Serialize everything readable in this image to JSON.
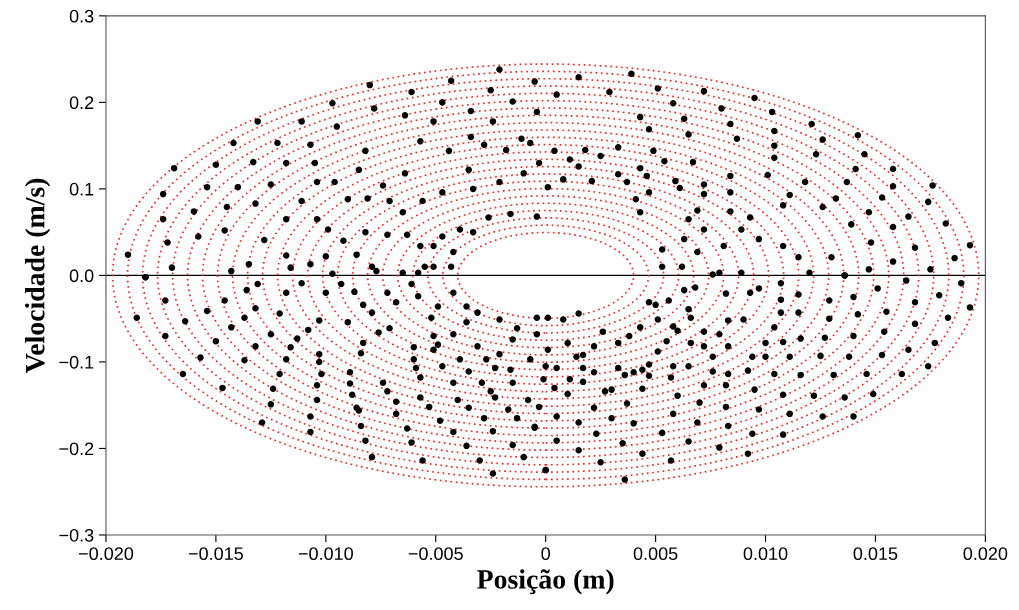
{
  "chart_data": {
    "type": "scatter",
    "xlabel": "Posição (m)",
    "ylabel": "Velocidade (m/s)",
    "xlim": [
      -0.02,
      0.02
    ],
    "ylim": [
      -0.3,
      0.3
    ],
    "xticks": [
      {
        "value": -0.02,
        "label": "−0.020"
      },
      {
        "value": -0.015,
        "label": "−0.015"
      },
      {
        "value": -0.01,
        "label": "−0.010"
      },
      {
        "value": -0.005,
        "label": "−0.005"
      },
      {
        "value": 0,
        "label": "0"
      },
      {
        "value": 0.005,
        "label": "0.005"
      },
      {
        "value": 0.01,
        "label": "0.010"
      },
      {
        "value": 0.015,
        "label": "0.015"
      },
      {
        "value": 0.02,
        "label": "0.020"
      }
    ],
    "yticks": [
      {
        "value": -0.3,
        "label": "−0.3"
      },
      {
        "value": -0.2,
        "label": "−0.2"
      },
      {
        "value": -0.1,
        "label": "−0.1"
      },
      {
        "value": 0,
        "label": "0.0"
      },
      {
        "value": 0.1,
        "label": "0.1"
      },
      {
        "value": 0.2,
        "label": "0.2"
      },
      {
        "value": 0.3,
        "label": "0.3"
      }
    ],
    "grid": false,
    "legend": false,
    "ref_lines": [
      {
        "axis": "y",
        "value": 0,
        "color": "#000000",
        "line_style": "solid"
      }
    ],
    "series": [
      {
        "color": "#000000",
        "marker": "circle",
        "x": [
          -0.0131,
          -0.0169,
          -0.019,
          -0.0182,
          -0.0174,
          -0.0174,
          -0.0142,
          -0.0111,
          -0.0097,
          -0.008,
          -0.0043,
          -0.0021,
          -0.0061,
          -0.0047,
          -0.0078,
          -0.0122,
          -0.015,
          -0.0154,
          -0.016,
          -0.0172,
          -0.017,
          -0.0158,
          -0.0145,
          -0.0133,
          -0.0118,
          -0.0107,
          -0.0095,
          -0.0064,
          -0.0034,
          -0.0025,
          -0.0015,
          -0.0005,
          -0.0004,
          -0.0024,
          -0.0051,
          -0.0034,
          -0.0057,
          -0.0082,
          -0.0105,
          -0.0125,
          -0.014,
          -0.0146,
          -0.0143,
          -0.0132,
          -0.0128,
          -0.0135,
          -0.0118,
          -0.0116,
          -0.0107,
          -0.0118,
          -0.0111,
          -0.0104,
          -0.0096,
          -0.009,
          -0.0085,
          -0.0074,
          -0.0064,
          -0.0044,
          -0.0035,
          -0.0028,
          -0.0018,
          -0.0011,
          -0.0007,
          -0.0003,
          -0.001,
          -0.0021,
          -0.0033,
          -0.0047,
          -0.0056,
          -0.0071,
          -0.0081,
          -0.0104,
          -0.0099,
          -0.0092,
          -0.01,
          -0.0097,
          -0.0082,
          -0.0072,
          -0.0065,
          -0.0063,
          -0.0057,
          -0.0051,
          -0.0047,
          -0.0039,
          -0.0033,
          -0.0026,
          -0.0016,
          -0.0004,
          -0.0051,
          -0.0058,
          -0.0065,
          -0.0077,
          -0.0086,
          -0.0079,
          -0.0055,
          -0.0043,
          -0.0042,
          0.0039,
          0.0015,
          0.0072,
          0.0095,
          0.0121,
          0.0142,
          0.0176,
          0.0193,
          0.0186,
          0.0158,
          0.0182,
          0.0174,
          0.0165,
          0.0153,
          0.0145,
          0.0126,
          0.0103,
          0.008,
          0.0051,
          0.0029,
          0.0005,
          0.0058,
          0.0084,
          0.0104,
          0.0123,
          0.0141,
          0.0137,
          0.0132,
          0.0147,
          0.0158,
          0.0168,
          0.0175,
          0.0158,
          0.0139,
          0.0148,
          0.0158,
          0.0147,
          0.0136,
          0.013,
          0.0126,
          0.0118,
          0.0111,
          0.0108,
          0.0101,
          0.0104,
          0.0104,
          0.0087,
          0.0084,
          0.0084,
          0.0084,
          0.0093,
          0.0097,
          0.0108,
          0.0115,
          0.012,
          0.0067,
          0.0065,
          0.0063,
          0.0047,
          0.0043,
          0.0033,
          0.0025,
          0.0018,
          0.0004,
          0.0011,
          0.0072,
          0.0072,
          0.0069,
          0.0065,
          0.0061,
          0.0059,
          0.0054,
          0.0049,
          0.0043,
          0.0046,
          0.0047,
          0.0043,
          0.0041,
          0.0037,
          0.0033,
          0.0021,
          0.0015,
          0.0008,
          0.0001,
          0.0089,
          0.0081,
          0.0072,
          0.0063,
          0.0053,
          0.0053,
          0.0062,
          0.0069,
          0.0079,
          0.0089,
          -0.0186,
          -0.0173,
          -0.0165,
          -0.0182,
          -0.0173,
          -0.0164,
          -0.0157,
          -0.0147,
          -0.0129,
          -0.0107,
          -0.0079,
          -0.0056,
          -0.0024,
          0.0,
          -0.003,
          -0.0036,
          -0.0042,
          -0.0015,
          -0.001,
          -0.0005,
          -0.0061,
          -0.0063,
          -0.0068,
          -0.0082,
          -0.0084,
          -0.0085,
          -0.0107,
          -0.0104,
          -0.0104,
          -0.0102,
          -0.0103,
          -0.0103,
          -0.0125,
          -0.0124,
          -0.0121,
          -0.0118,
          -0.0116,
          -0.0113,
          -0.0108,
          -0.0103,
          -0.01,
          -0.0137,
          -0.0132,
          -0.0125,
          -0.0121,
          -0.0118,
          -0.0143,
          -0.0137,
          -0.0132,
          -0.0131,
          -0.015,
          -0.0154,
          -0.0146,
          -0.0136,
          -0.0089,
          -0.0089,
          -0.0088,
          -0.0086,
          -0.0084,
          -0.0083,
          -0.0076,
          -0.0071,
          -0.0074,
          -0.0072,
          -0.0068,
          -0.006,
          -0.006,
          -0.0059,
          -0.0057,
          -0.0057,
          -0.0053,
          -0.0048,
          -0.0051,
          -0.0047,
          -0.0042,
          -0.004,
          -0.0035,
          -0.0028,
          -0.0024,
          -0.0017,
          -0.0013,
          -0.0005,
          -0.0003,
          -0.0008,
          -0.0015,
          -0.0025,
          -0.0023,
          -0.0029,
          -0.0035,
          -0.0039,
          -0.0023,
          -0.0016,
          -0.0007,
          -0.0001,
          -0.0049,
          -0.0042,
          -0.0051,
          -0.0052,
          -0.0036,
          -0.0031,
          -0.0027,
          -0.0021,
          -0.0015,
          -0.0004,
          0.0001,
          -0.0058,
          -0.0049,
          -0.0042,
          -0.0061,
          -0.0068,
          -0.0072,
          -0.0079,
          -0.0083,
          -0.0087,
          -0.009,
          -0.0093,
          -0.0111,
          -0.0031,
          -0.0021,
          -0.0013,
          -0.0004,
          -0.0036,
          0.0193,
          0.0189,
          0.0179,
          0.0183,
          0.0177,
          0.0174,
          0.0168,
          0.0168,
          0.0165,
          0.0162,
          0.0155,
          0.0154,
          0.0153,
          0.0149,
          0.0146,
          0.014,
          0.0136,
          0.0138,
          0.014,
          0.0142,
          0.014,
          0.0151,
          0.0164,
          0.0136,
          0.0129,
          0.0129,
          0.0127,
          0.0125,
          0.0131,
          0.0122,
          0.0126,
          0.0108,
          0.0111,
          0.0108,
          0.0104,
          0.0116,
          0.0116,
          0.0111,
          0.0108,
          0.0104,
          0.0115,
          0.0115,
          0.0107,
          0.0107,
          0.0107,
          0.0097,
          0.0093,
          0.009,
          0.01,
          0.01,
          0.0094,
          0.0092,
          0.0095,
          0.0097,
          0.0094,
          0.0092,
          0.0079,
          0.0083,
          0.0082,
          0.0082,
          0.0083,
          0.0083,
          0.0083,
          0.0079,
          0.0076,
          0.0072,
          0.007,
          0.0069,
          0.0065,
          0.0057,
          0.0044,
          0.0036,
          0.0025,
          0.0035,
          0.0053,
          0.0058,
          0.006,
          0.004,
          0.0037,
          0.003,
          0.0023,
          0.0015,
          0.0,
          0.0005,
          0.0005,
          0.0015,
          0.0022,
          0.003,
          0.0036,
          0.0044,
          0.0047,
          0.0057,
          0.0058,
          0.0065,
          0.0066,
          0.0072,
          0.0076,
          0.0072,
          0.0066,
          0.006,
          0.0051,
          0.0047,
          0.004,
          0.0033,
          0.0027,
          0.0022,
          0.0017,
          0.0011,
          0.0004,
          0.001,
          0.0014,
          0.001,
          0.0005,
          0.0,
          0.0017,
          0.0044,
          0.0055,
          0.0058,
          0.0051,
          0.0047,
          0.0056,
          0.0065,
          0.0068,
          0.0082,
          0.0076,
          0.0063,
          0.005,
          0.0043,
          0.0038,
          0.0033,
          0.0026,
          0.0022,
          0.0017,
          0.0015,
          0.0008,
          0.0001
        ],
        "values": [
          0.178,
          0.124,
          0.024,
          -0.002,
          0.094,
          0.065,
          0.153,
          0.178,
          0.199,
          0.22,
          0.225,
          0.238,
          0.212,
          0.2,
          0.193,
          0.153,
          0.128,
          0.102,
          0.074,
          0.038,
          0.009,
          0.045,
          0.079,
          0.131,
          0.13,
          0.151,
          0.172,
          0.185,
          0.19,
          0.214,
          0.201,
          0.224,
          0.189,
          0.178,
          0.178,
          0.16,
          0.155,
          0.144,
          0.13,
          0.105,
          0.102,
          0.052,
          0.005,
          0.083,
          0.041,
          0.013,
          0.023,
          0.009,
          0.013,
          0.065,
          0.086,
          0.108,
          0.108,
          0.088,
          0.122,
          0.104,
          0.118,
          0.144,
          0.122,
          0.151,
          0.145,
          0.158,
          0.153,
          0.13,
          0.118,
          0.108,
          0.1,
          0.096,
          0.086,
          0.086,
          0.089,
          0.065,
          0.053,
          0.04,
          0.022,
          0.002,
          0.05,
          0.047,
          0.073,
          0.047,
          0.034,
          0.034,
          0.045,
          0.053,
          0.05,
          0.067,
          0.071,
          0.068,
          0.01,
          0.003,
          0.003,
          0.005,
          0.024,
          0.01,
          0.01,
          0.01,
          0.027,
          0.233,
          0.229,
          0.213,
          0.205,
          0.175,
          0.162,
          0.104,
          0.035,
          0.02,
          0.123,
          0.06,
          0.085,
          0.068,
          0.09,
          0.14,
          0.157,
          0.189,
          0.193,
          0.216,
          0.212,
          0.209,
          0.199,
          0.175,
          0.167,
          0.14,
          0.123,
          0.108,
          0.089,
          0.073,
          0.056,
          0.032,
          0.007,
          0.103,
          0.059,
          0.038,
          0.016,
          0.007,
          0.0,
          0.021,
          0.079,
          0.108,
          0.093,
          0.081,
          0.116,
          0.15,
          0.136,
          0.158,
          0.115,
          0.096,
          0.074,
          0.067,
          0.042,
          0.034,
          0.021,
          0.003,
          0.131,
          0.163,
          0.181,
          0.169,
          0.183,
          0.148,
          0.138,
          0.145,
          0.144,
          0.134,
          0.105,
          0.094,
          0.075,
          0.065,
          0.101,
          0.109,
          0.132,
          0.144,
          0.124,
          0.115,
          0.096,
          0.073,
          0.088,
          0.108,
          0.117,
          0.109,
          0.126,
          0.111,
          0.102,
          0.053,
          0.034,
          0.053,
          0.042,
          0.03,
          0.01,
          0.01,
          0.027,
          0.003,
          0.003,
          -0.049,
          -0.07,
          -0.114,
          -0.002,
          -0.029,
          -0.053,
          -0.095,
          -0.13,
          -0.17,
          -0.181,
          -0.21,
          -0.214,
          -0.229,
          -0.225,
          -0.214,
          -0.197,
          -0.181,
          -0.196,
          -0.21,
          -0.176,
          -0.193,
          -0.177,
          -0.16,
          -0.191,
          -0.174,
          -0.156,
          -0.163,
          -0.144,
          -0.127,
          -0.114,
          -0.1,
          -0.091,
          -0.149,
          -0.131,
          -0.114,
          -0.097,
          -0.083,
          -0.073,
          -0.063,
          -0.052,
          -0.02,
          -0.098,
          -0.082,
          -0.068,
          -0.044,
          -0.02,
          -0.06,
          -0.049,
          -0.038,
          -0.01,
          -0.076,
          -0.041,
          -0.029,
          -0.017,
          -0.112,
          -0.125,
          -0.138,
          -0.153,
          -0.09,
          -0.078,
          -0.066,
          -0.061,
          -0.124,
          -0.134,
          -0.146,
          -0.097,
          -0.083,
          -0.107,
          -0.118,
          -0.141,
          -0.152,
          -0.168,
          -0.086,
          -0.105,
          -0.124,
          -0.144,
          -0.153,
          -0.165,
          -0.18,
          -0.155,
          -0.165,
          -0.175,
          -0.152,
          -0.144,
          -0.124,
          -0.134,
          -0.141,
          -0.124,
          -0.111,
          -0.097,
          -0.107,
          -0.109,
          -0.097,
          -0.12,
          -0.08,
          -0.068,
          -0.07,
          -0.049,
          -0.054,
          -0.082,
          -0.097,
          -0.091,
          -0.074,
          -0.068,
          -0.086,
          -0.024,
          -0.036,
          -0.02,
          -0.01,
          -0.031,
          -0.02,
          -0.043,
          -0.034,
          -0.019,
          -0.054,
          -0.01,
          -0.009,
          -0.043,
          -0.051,
          -0.061,
          -0.049,
          -0.036,
          -0.037,
          -0.009,
          -0.023,
          -0.049,
          -0.078,
          -0.105,
          -0.031,
          -0.056,
          -0.086,
          -0.114,
          -0.042,
          -0.065,
          -0.092,
          -0.137,
          -0.114,
          -0.163,
          -0.141,
          -0.094,
          -0.07,
          -0.045,
          -0.025,
          -0.015,
          -0.006,
          0.0,
          -0.029,
          -0.05,
          -0.072,
          -0.093,
          -0.115,
          -0.139,
          -0.163,
          -0.184,
          -0.16,
          -0.138,
          -0.114,
          -0.115,
          -0.073,
          -0.094,
          -0.077,
          -0.06,
          -0.043,
          -0.022,
          -0.043,
          -0.028,
          -0.009,
          -0.015,
          -0.02,
          -0.051,
          -0.078,
          -0.094,
          -0.094,
          -0.11,
          -0.132,
          -0.155,
          -0.183,
          -0.206,
          -0.199,
          -0.174,
          -0.152,
          -0.127,
          -0.114,
          -0.082,
          -0.052,
          -0.068,
          -0.111,
          -0.127,
          -0.147,
          -0.17,
          -0.192,
          -0.214,
          -0.206,
          -0.236,
          -0.216,
          -0.194,
          -0.182,
          -0.16,
          -0.139,
          -0.171,
          -0.148,
          -0.165,
          -0.183,
          -0.202,
          -0.225,
          -0.191,
          -0.163,
          -0.17,
          -0.153,
          -0.132,
          -0.115,
          -0.109,
          -0.116,
          -0.118,
          -0.105,
          -0.105,
          -0.078,
          -0.082,
          -0.094,
          -0.065,
          -0.049,
          -0.064,
          -0.088,
          -0.103,
          -0.112,
          -0.107,
          -0.134,
          -0.112,
          -0.123,
          -0.12,
          -0.13,
          -0.137,
          -0.094,
          -0.078,
          -0.107,
          -0.105,
          -0.107,
          -0.131,
          -0.076,
          -0.059,
          -0.051,
          -0.031,
          -0.029,
          -0.039,
          -0.014,
          -0.021,
          0.001,
          -0.017,
          -0.034,
          -0.06,
          -0.07,
          -0.078,
          -0.065,
          -0.082,
          -0.092,
          -0.044,
          -0.051,
          -0.049
        ]
      }
    ]
  }
}
